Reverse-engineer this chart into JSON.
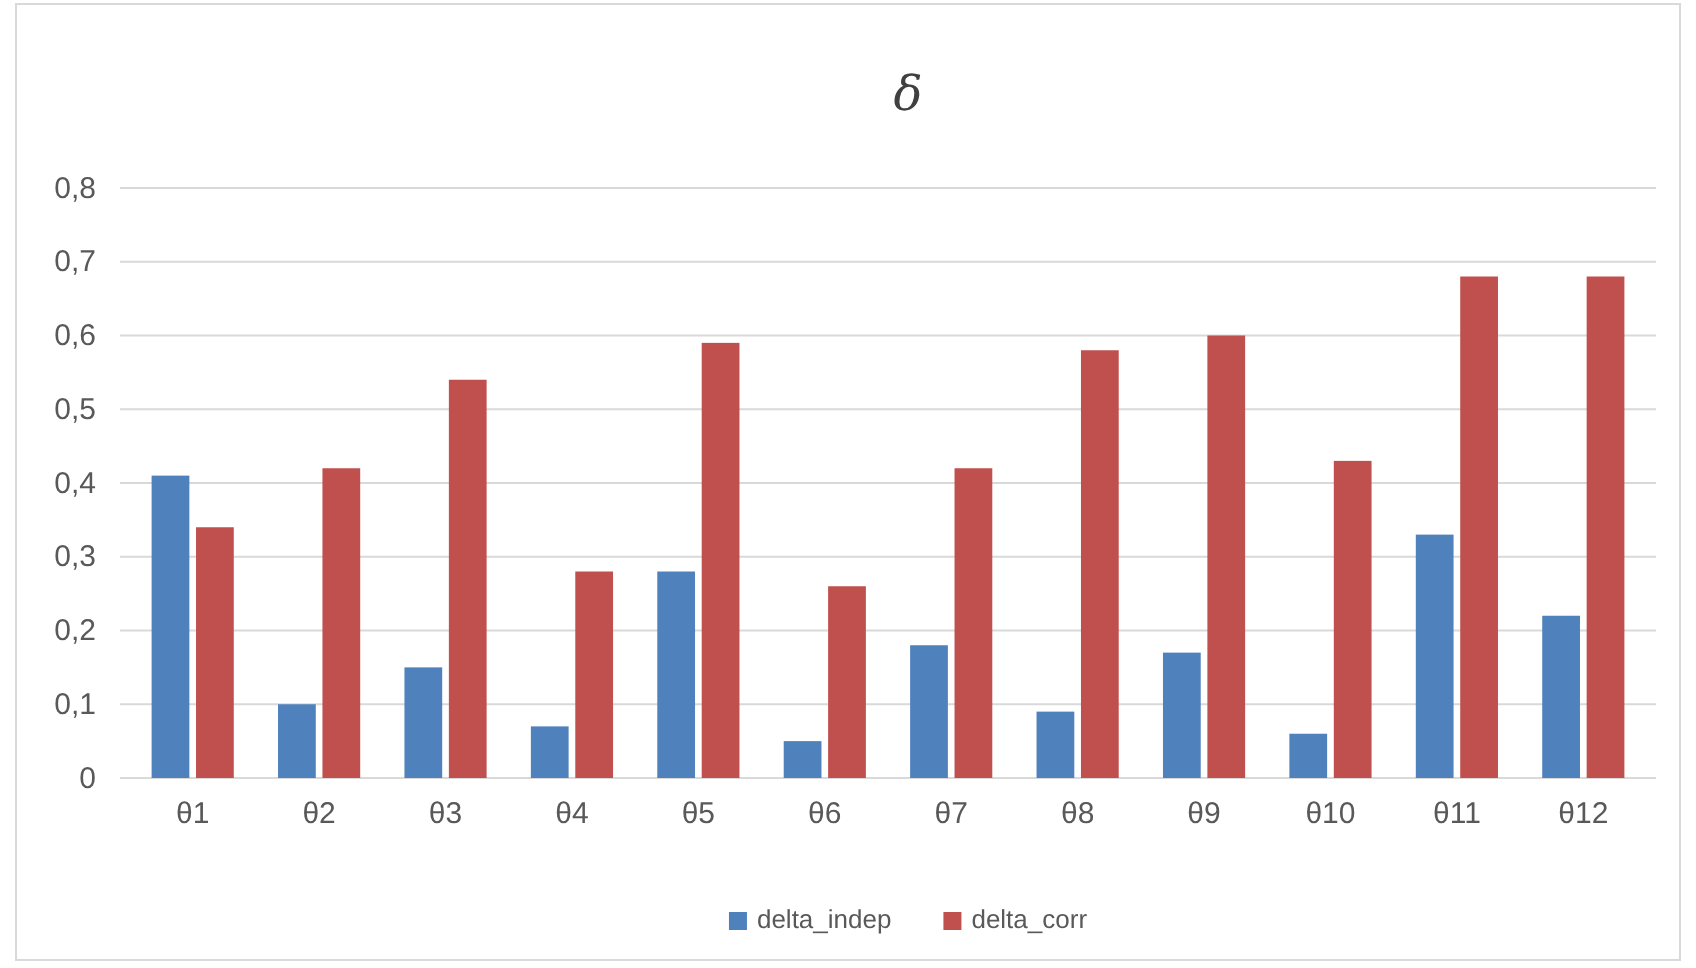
{
  "chart_data": {
    "type": "bar",
    "title": "δ",
    "categories": [
      "θ1",
      "θ2",
      "θ3",
      "θ4",
      "θ5",
      "θ6",
      "θ7",
      "θ8",
      "θ9",
      "θ10",
      "θ11",
      "θ12"
    ],
    "series": [
      {
        "name": "delta_indep",
        "color": "#4f81bd",
        "values": [
          0.41,
          0.1,
          0.15,
          0.07,
          0.28,
          0.05,
          0.18,
          0.09,
          0.17,
          0.06,
          0.33,
          0.22
        ]
      },
      {
        "name": "delta_corr",
        "color": "#c0504d",
        "values": [
          0.34,
          0.42,
          0.54,
          0.28,
          0.59,
          0.26,
          0.42,
          0.58,
          0.6,
          0.43,
          0.68,
          0.68
        ]
      }
    ],
    "ylim": [
      0,
      0.8
    ],
    "yticks": [
      0,
      {
        "value": 0.1,
        "label": "0,1"
      },
      {
        "value": 0.2,
        "label": "0,2"
      },
      {
        "value": 0.3,
        "label": "0,3"
      },
      {
        "value": 0.4,
        "label": "0,4"
      },
      {
        "value": 0.5,
        "label": "0,5"
      },
      {
        "value": 0.6,
        "label": "0,6"
      },
      {
        "value": 0.7,
        "label": "0,7"
      },
      {
        "value": 0.8,
        "label": "0,8"
      }
    ],
    "grid": "y",
    "legend": "bottom"
  }
}
